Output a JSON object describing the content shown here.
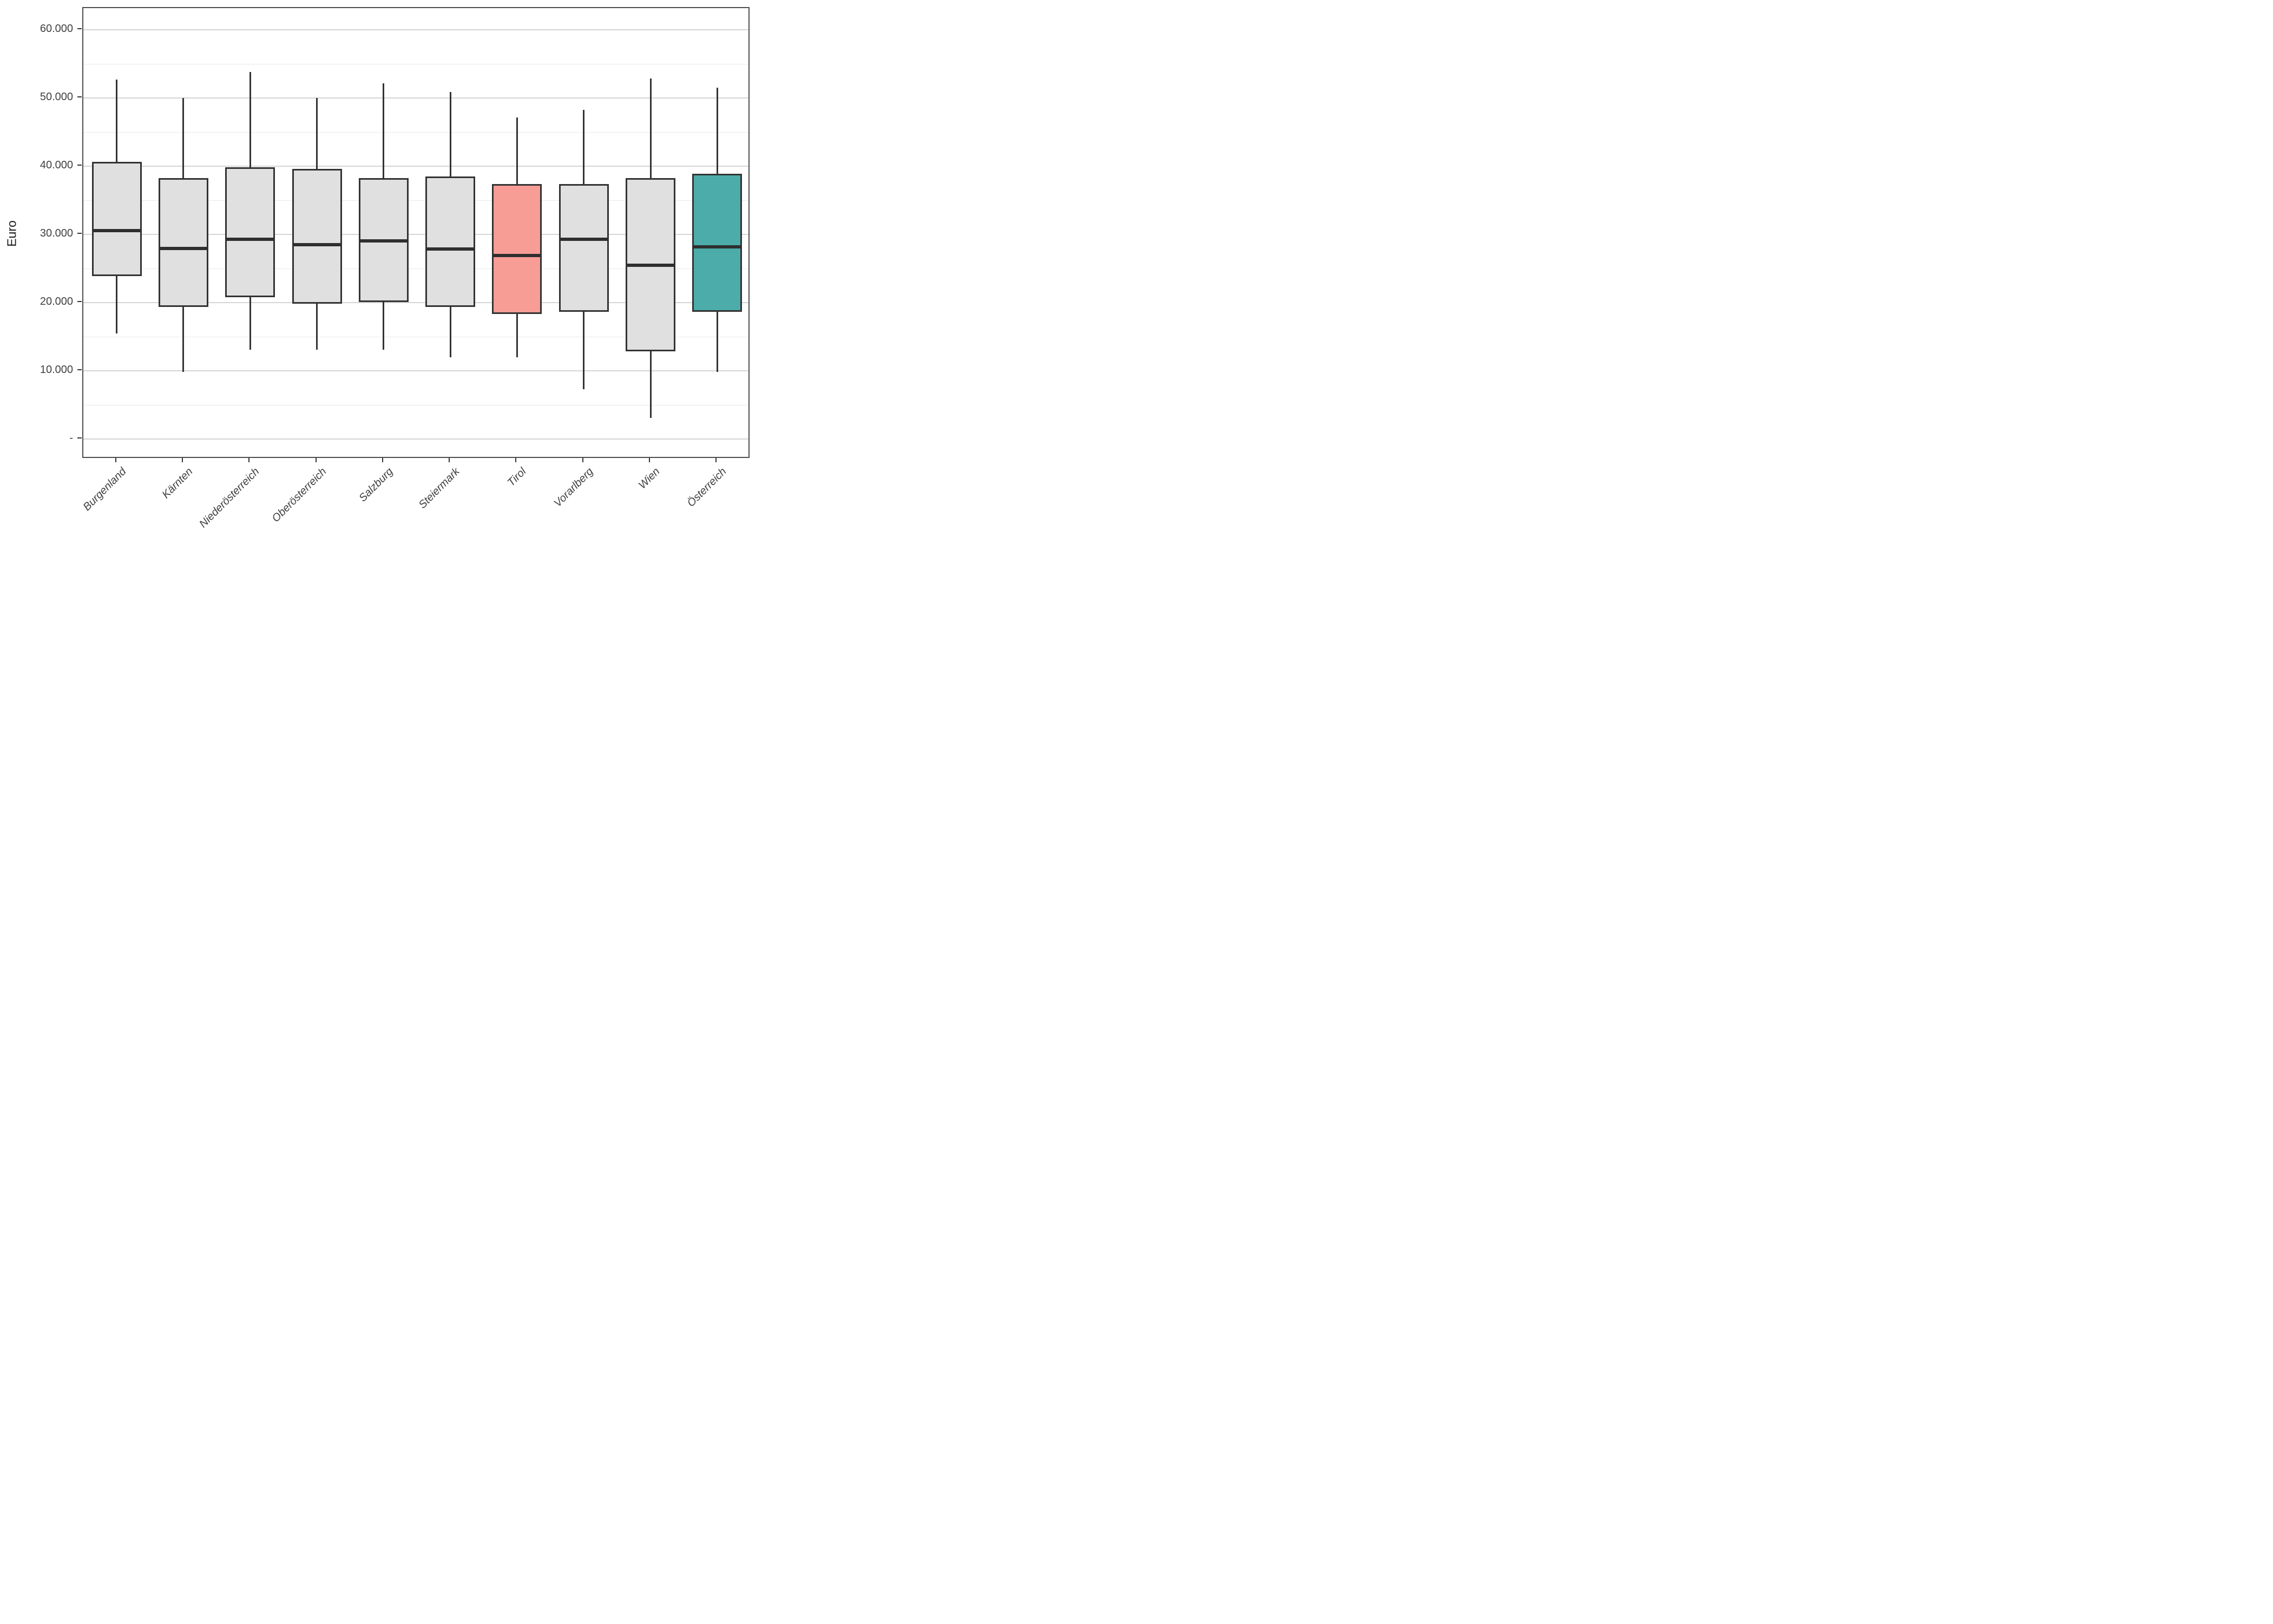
{
  "chart_data": {
    "type": "boxplot",
    "title": "",
    "xlabel": "",
    "ylabel": "Euro",
    "legend": "none",
    "grid": "horizontal-major-and-minor",
    "ylim": [
      -2900,
      63200
    ],
    "y_major_ticks": [
      {
        "value": 60000,
        "label": "60.000"
      },
      {
        "value": 50000,
        "label": "50.000"
      },
      {
        "value": 40000,
        "label": "40.000"
      },
      {
        "value": 30000,
        "label": "30.000"
      },
      {
        "value": 20000,
        "label": "20.000"
      },
      {
        "value": 10000,
        "label": "10.000"
      },
      {
        "value": 0,
        "label": "-"
      }
    ],
    "y_minor_ticks": [
      55000,
      45000,
      35000,
      25000,
      15000,
      5000
    ],
    "categories": [
      "Burgenland",
      "Kärnten",
      "Niederösterreich",
      "Oberösterreich",
      "Salzburg",
      "Steiermark",
      "Tirol",
      "Vorarlberg",
      "Wien",
      "Österreich"
    ],
    "series": [
      {
        "name": "Burgenland",
        "min": 15500,
        "q1": 23900,
        "median": 30600,
        "q3": 40700,
        "max": 52700,
        "fill": "#e0e0e0"
      },
      {
        "name": "Kärnten",
        "min": 9900,
        "q1": 19400,
        "median": 28000,
        "q3": 38300,
        "max": 50000,
        "fill": "#e0e0e0"
      },
      {
        "name": "Niederösterreich",
        "min": 13100,
        "q1": 20800,
        "median": 29300,
        "q3": 39900,
        "max": 53800,
        "fill": "#e0e0e0"
      },
      {
        "name": "Oberösterreich",
        "min": 13100,
        "q1": 19900,
        "median": 28500,
        "q3": 39600,
        "max": 50000,
        "fill": "#e0e0e0"
      },
      {
        "name": "Salzburg",
        "min": 13100,
        "q1": 20100,
        "median": 29100,
        "q3": 38300,
        "max": 52200,
        "fill": "#e0e0e0"
      },
      {
        "name": "Steiermark",
        "min": 12000,
        "q1": 19400,
        "median": 27900,
        "q3": 38500,
        "max": 50900,
        "fill": "#e0e0e0"
      },
      {
        "name": "Tirol",
        "min": 12000,
        "q1": 18400,
        "median": 26900,
        "q3": 37400,
        "max": 47200,
        "fill": "#f89c96"
      },
      {
        "name": "Vorarlberg",
        "min": 7300,
        "q1": 18700,
        "median": 29300,
        "q3": 37400,
        "max": 48300,
        "fill": "#e0e0e0"
      },
      {
        "name": "Wien",
        "min": 3100,
        "q1": 12900,
        "median": 25500,
        "q3": 38300,
        "max": 52900,
        "fill": "#e0e0e0"
      },
      {
        "name": "Österreich",
        "min": 9900,
        "q1": 18700,
        "median": 28200,
        "q3": 38900,
        "max": 51500,
        "fill": "#4bacaa"
      }
    ],
    "colors": {
      "box_default_fill": "#e0e0e0",
      "box_highlight_red": "#f89c96",
      "box_highlight_teal": "#4bacaa",
      "stroke": "#333333",
      "grid_major": "#d5d5d5",
      "grid_minor": "#e9e9e9",
      "panel_border": "#4d4d4d",
      "tick_label": "#404040"
    }
  },
  "layout_note": "",
  "axis": {
    "y_title": "Euro"
  }
}
